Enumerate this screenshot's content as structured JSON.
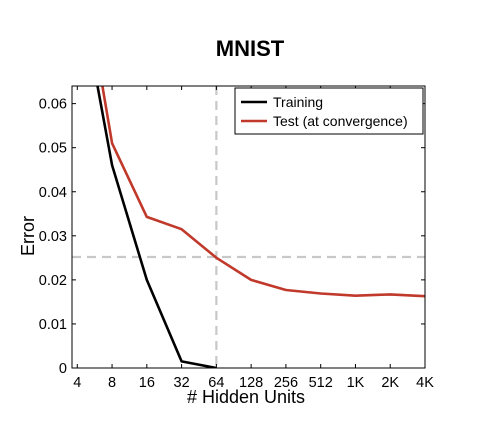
{
  "chart_data": {
    "type": "line",
    "title": "MNIST",
    "xlabel": "# Hidden Units",
    "ylabel": "Error",
    "x_scale": "log2",
    "categories": [
      "4",
      "8",
      "16",
      "32",
      "64",
      "128",
      "256",
      "512",
      "1K",
      "2K",
      "4K"
    ],
    "x_values": [
      4,
      8,
      16,
      32,
      64,
      128,
      256,
      512,
      1024,
      2048,
      4096
    ],
    "xlim": [
      3.6,
      4096
    ],
    "ylim": [
      0,
      0.064
    ],
    "y_ticks": [
      0,
      0.01,
      0.02,
      0.03,
      0.04,
      0.05,
      0.06
    ],
    "y_tick_labels": [
      "0",
      "0.01",
      "0.02",
      "0.03",
      "0.04",
      "0.05",
      "0.06"
    ],
    "grid": false,
    "legend_position": "top-right",
    "series": [
      {
        "name": "Training",
        "color": "#000000",
        "points": [
          [
            5.8,
            0.066
          ],
          [
            8,
            0.046
          ],
          [
            16,
            0.02
          ],
          [
            32,
            0.0015
          ],
          [
            64,
            0.0
          ]
        ]
      },
      {
        "name": "Test (at convergence)",
        "color": "#c0392b",
        "points": [
          [
            6.4,
            0.066
          ],
          [
            8,
            0.051
          ],
          [
            16,
            0.0343
          ],
          [
            32,
            0.0315
          ],
          [
            64,
            0.025
          ],
          [
            128,
            0.02
          ],
          [
            256,
            0.0177
          ],
          [
            512,
            0.0169
          ],
          [
            1024,
            0.0164
          ],
          [
            2048,
            0.0167
          ],
          [
            4096,
            0.0163
          ]
        ]
      }
    ],
    "reference_lines": {
      "vertical_x": 64,
      "horizontal_y": 0.0252,
      "color": "#c8c8c8",
      "style": "dashed"
    }
  }
}
